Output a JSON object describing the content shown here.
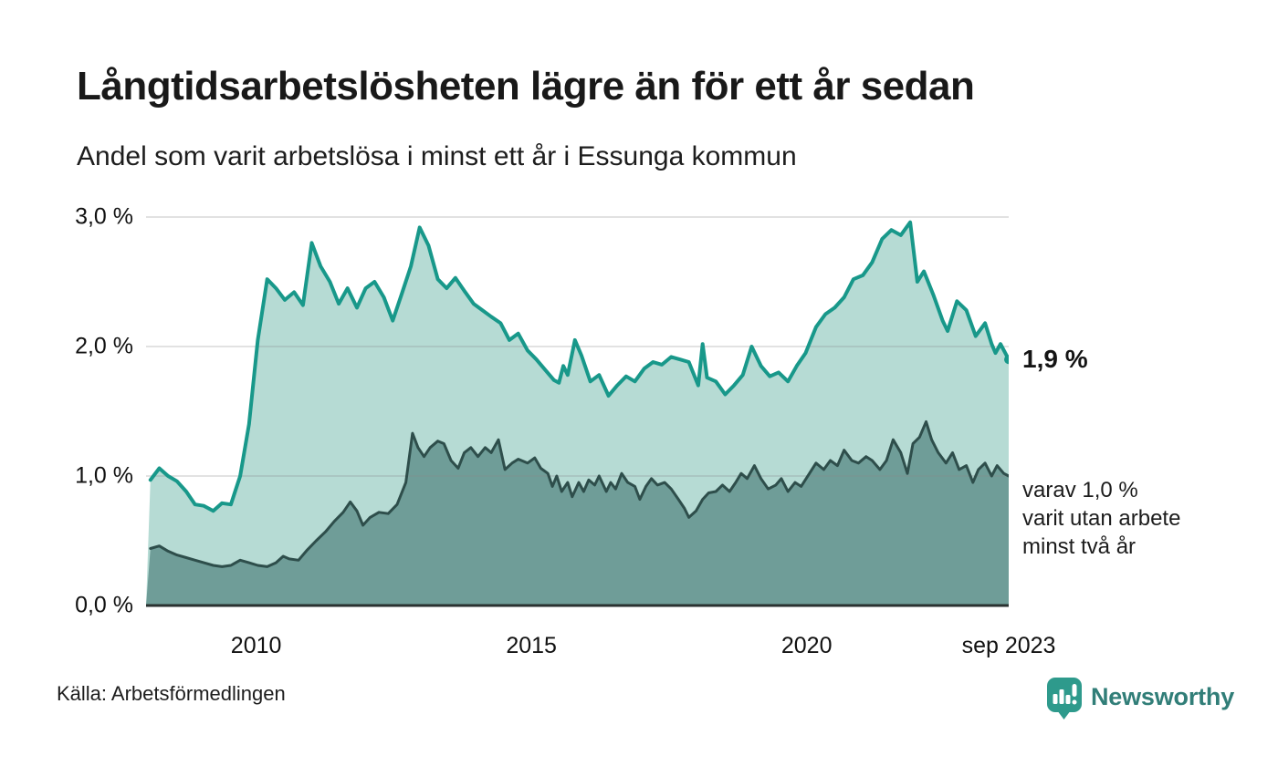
{
  "header": {
    "title": "Långtidsarbetslösheten lägre än för ett år sedan",
    "subtitle": "Andel som varit arbetslösa i minst ett år i Essunga kommun"
  },
  "chart_data": {
    "type": "area",
    "title": "Långtidsarbetslösheten lägre än för ett år sedan",
    "subtitle": "Andel som varit arbetslösa i minst ett år i Essunga kommun",
    "x_domain": [
      2008.0,
      2023.67
    ],
    "ylim": [
      0,
      3.1
    ],
    "grid": true,
    "y_ticks": [
      {
        "value": 0.0,
        "label": "0,0 %"
      },
      {
        "value": 1.0,
        "label": "1,0 %"
      },
      {
        "value": 2.0,
        "label": "2,0 %"
      },
      {
        "value": 3.0,
        "label": "3,0 %"
      }
    ],
    "x_ticks": [
      {
        "value": 2010,
        "label": "2010"
      },
      {
        "value": 2015,
        "label": "2015"
      },
      {
        "value": 2020,
        "label": "2020"
      },
      {
        "value": 2023.67,
        "label": "sep 2023"
      }
    ],
    "series": [
      {
        "name": "arbetslösa minst ett år",
        "line_color": "#18988A",
        "fill_color": "#B6DBD4",
        "line_width": 4,
        "end_dot": true,
        "points": [
          [
            2008.08,
            0.97
          ],
          [
            2008.24,
            1.06
          ],
          [
            2008.4,
            1.0
          ],
          [
            2008.56,
            0.96
          ],
          [
            2008.73,
            0.88
          ],
          [
            2008.89,
            0.78
          ],
          [
            2009.05,
            0.77
          ],
          [
            2009.22,
            0.73
          ],
          [
            2009.38,
            0.79
          ],
          [
            2009.54,
            0.78
          ],
          [
            2009.71,
            1.0
          ],
          [
            2009.87,
            1.4
          ],
          [
            2010.03,
            2.05
          ],
          [
            2010.2,
            2.52
          ],
          [
            2010.36,
            2.45
          ],
          [
            2010.52,
            2.36
          ],
          [
            2010.69,
            2.42
          ],
          [
            2010.85,
            2.32
          ],
          [
            2011.01,
            2.8
          ],
          [
            2011.17,
            2.62
          ],
          [
            2011.34,
            2.5
          ],
          [
            2011.5,
            2.33
          ],
          [
            2011.66,
            2.45
          ],
          [
            2011.83,
            2.3
          ],
          [
            2011.99,
            2.45
          ],
          [
            2012.15,
            2.5
          ],
          [
            2012.32,
            2.38
          ],
          [
            2012.48,
            2.2
          ],
          [
            2012.64,
            2.4
          ],
          [
            2012.81,
            2.62
          ],
          [
            2012.97,
            2.92
          ],
          [
            2013.13,
            2.78
          ],
          [
            2013.3,
            2.52
          ],
          [
            2013.46,
            2.45
          ],
          [
            2013.62,
            2.53
          ],
          [
            2013.78,
            2.43
          ],
          [
            2013.95,
            2.33
          ],
          [
            2014.11,
            2.28
          ],
          [
            2014.27,
            2.23
          ],
          [
            2014.44,
            2.18
          ],
          [
            2014.6,
            2.05
          ],
          [
            2014.76,
            2.1
          ],
          [
            2014.93,
            1.97
          ],
          [
            2015.09,
            1.9
          ],
          [
            2015.25,
            1.82
          ],
          [
            2015.41,
            1.74
          ],
          [
            2015.5,
            1.72
          ],
          [
            2015.58,
            1.85
          ],
          [
            2015.66,
            1.78
          ],
          [
            2015.79,
            2.05
          ],
          [
            2015.91,
            1.93
          ],
          [
            2016.07,
            1.73
          ],
          [
            2016.23,
            1.78
          ],
          [
            2016.4,
            1.62
          ],
          [
            2016.56,
            1.7
          ],
          [
            2016.72,
            1.77
          ],
          [
            2016.88,
            1.73
          ],
          [
            2017.05,
            1.83
          ],
          [
            2017.21,
            1.88
          ],
          [
            2017.37,
            1.86
          ],
          [
            2017.54,
            1.92
          ],
          [
            2017.7,
            1.9
          ],
          [
            2017.86,
            1.88
          ],
          [
            2018.03,
            1.7
          ],
          [
            2018.11,
            2.02
          ],
          [
            2018.19,
            1.76
          ],
          [
            2018.35,
            1.73
          ],
          [
            2018.52,
            1.63
          ],
          [
            2018.68,
            1.7
          ],
          [
            2018.84,
            1.78
          ],
          [
            2019.0,
            2.0
          ],
          [
            2019.17,
            1.85
          ],
          [
            2019.33,
            1.77
          ],
          [
            2019.49,
            1.8
          ],
          [
            2019.66,
            1.73
          ],
          [
            2019.82,
            1.85
          ],
          [
            2019.98,
            1.95
          ],
          [
            2020.17,
            2.15
          ],
          [
            2020.34,
            2.25
          ],
          [
            2020.51,
            2.3
          ],
          [
            2020.68,
            2.38
          ],
          [
            2020.85,
            2.52
          ],
          [
            2021.02,
            2.55
          ],
          [
            2021.19,
            2.65
          ],
          [
            2021.37,
            2.83
          ],
          [
            2021.54,
            2.9
          ],
          [
            2021.71,
            2.86
          ],
          [
            2021.88,
            2.96
          ],
          [
            2022.01,
            2.5
          ],
          [
            2022.13,
            2.58
          ],
          [
            2022.3,
            2.4
          ],
          [
            2022.47,
            2.2
          ],
          [
            2022.56,
            2.12
          ],
          [
            2022.73,
            2.35
          ],
          [
            2022.9,
            2.28
          ],
          [
            2023.07,
            2.08
          ],
          [
            2023.24,
            2.18
          ],
          [
            2023.36,
            2.02
          ],
          [
            2023.43,
            1.95
          ],
          [
            2023.52,
            2.02
          ],
          [
            2023.67,
            1.9
          ]
        ]
      },
      {
        "name": "varav utan arbete minst två år",
        "line_color": "#2E4E4B",
        "fill_color": "#6F9D98",
        "line_width": 3,
        "end_dot": false,
        "points": [
          [
            2008.08,
            0.44
          ],
          [
            2008.24,
            0.46
          ],
          [
            2008.4,
            0.42
          ],
          [
            2008.56,
            0.39
          ],
          [
            2008.73,
            0.37
          ],
          [
            2008.89,
            0.35
          ],
          [
            2009.05,
            0.33
          ],
          [
            2009.22,
            0.31
          ],
          [
            2009.38,
            0.3
          ],
          [
            2009.54,
            0.31
          ],
          [
            2009.71,
            0.35
          ],
          [
            2009.87,
            0.33
          ],
          [
            2010.03,
            0.31
          ],
          [
            2010.2,
            0.3
          ],
          [
            2010.36,
            0.33
          ],
          [
            2010.49,
            0.38
          ],
          [
            2010.6,
            0.36
          ],
          [
            2010.77,
            0.35
          ],
          [
            2010.93,
            0.43
          ],
          [
            2011.09,
            0.5
          ],
          [
            2011.26,
            0.57
          ],
          [
            2011.42,
            0.65
          ],
          [
            2011.58,
            0.72
          ],
          [
            2011.71,
            0.8
          ],
          [
            2011.83,
            0.73
          ],
          [
            2011.94,
            0.62
          ],
          [
            2012.07,
            0.68
          ],
          [
            2012.23,
            0.72
          ],
          [
            2012.4,
            0.71
          ],
          [
            2012.56,
            0.78
          ],
          [
            2012.72,
            0.95
          ],
          [
            2012.84,
            1.33
          ],
          [
            2012.94,
            1.22
          ],
          [
            2013.05,
            1.15
          ],
          [
            2013.16,
            1.22
          ],
          [
            2013.3,
            1.27
          ],
          [
            2013.41,
            1.25
          ],
          [
            2013.54,
            1.12
          ],
          [
            2013.67,
            1.06
          ],
          [
            2013.78,
            1.18
          ],
          [
            2013.9,
            1.22
          ],
          [
            2014.03,
            1.15
          ],
          [
            2014.16,
            1.22
          ],
          [
            2014.27,
            1.18
          ],
          [
            2014.4,
            1.28
          ],
          [
            2014.52,
            1.05
          ],
          [
            2014.65,
            1.1
          ],
          [
            2014.76,
            1.13
          ],
          [
            2014.93,
            1.1
          ],
          [
            2015.06,
            1.14
          ],
          [
            2015.17,
            1.06
          ],
          [
            2015.3,
            1.02
          ],
          [
            2015.38,
            0.92
          ],
          [
            2015.46,
            1.0
          ],
          [
            2015.55,
            0.88
          ],
          [
            2015.66,
            0.95
          ],
          [
            2015.74,
            0.84
          ],
          [
            2015.86,
            0.95
          ],
          [
            2015.95,
            0.88
          ],
          [
            2016.04,
            0.97
          ],
          [
            2016.15,
            0.93
          ],
          [
            2016.23,
            1.0
          ],
          [
            2016.36,
            0.88
          ],
          [
            2016.44,
            0.95
          ],
          [
            2016.53,
            0.9
          ],
          [
            2016.64,
            1.02
          ],
          [
            2016.75,
            0.95
          ],
          [
            2016.88,
            0.92
          ],
          [
            2016.97,
            0.82
          ],
          [
            2017.08,
            0.92
          ],
          [
            2017.18,
            0.98
          ],
          [
            2017.29,
            0.93
          ],
          [
            2017.42,
            0.95
          ],
          [
            2017.54,
            0.9
          ],
          [
            2017.67,
            0.82
          ],
          [
            2017.78,
            0.75
          ],
          [
            2017.86,
            0.68
          ],
          [
            2017.99,
            0.73
          ],
          [
            2018.11,
            0.82
          ],
          [
            2018.22,
            0.87
          ],
          [
            2018.35,
            0.88
          ],
          [
            2018.47,
            0.93
          ],
          [
            2018.6,
            0.88
          ],
          [
            2018.71,
            0.95
          ],
          [
            2018.81,
            1.02
          ],
          [
            2018.92,
            0.98
          ],
          [
            2019.05,
            1.08
          ],
          [
            2019.17,
            0.98
          ],
          [
            2019.3,
            0.9
          ],
          [
            2019.44,
            0.93
          ],
          [
            2019.54,
            0.98
          ],
          [
            2019.66,
            0.88
          ],
          [
            2019.79,
            0.95
          ],
          [
            2019.9,
            0.92
          ],
          [
            2020.05,
            1.02
          ],
          [
            2020.17,
            1.1
          ],
          [
            2020.31,
            1.05
          ],
          [
            2020.43,
            1.12
          ],
          [
            2020.56,
            1.08
          ],
          [
            2020.68,
            1.2
          ],
          [
            2020.82,
            1.12
          ],
          [
            2020.94,
            1.1
          ],
          [
            2021.08,
            1.15
          ],
          [
            2021.19,
            1.12
          ],
          [
            2021.33,
            1.05
          ],
          [
            2021.45,
            1.12
          ],
          [
            2021.57,
            1.28
          ],
          [
            2021.71,
            1.18
          ],
          [
            2021.83,
            1.02
          ],
          [
            2021.93,
            1.25
          ],
          [
            2022.05,
            1.3
          ],
          [
            2022.17,
            1.42
          ],
          [
            2022.27,
            1.28
          ],
          [
            2022.39,
            1.18
          ],
          [
            2022.53,
            1.1
          ],
          [
            2022.65,
            1.18
          ],
          [
            2022.77,
            1.05
          ],
          [
            2022.9,
            1.08
          ],
          [
            2023.02,
            0.95
          ],
          [
            2023.12,
            1.05
          ],
          [
            2023.24,
            1.1
          ],
          [
            2023.36,
            1.0
          ],
          [
            2023.46,
            1.08
          ],
          [
            2023.58,
            1.02
          ],
          [
            2023.67,
            1.0
          ]
        ]
      }
    ],
    "annotations": {
      "end_label": "1,9 %",
      "sub_label_lines": [
        "varav 1,0 %",
        "varit utan arbete",
        "minst två år"
      ]
    }
  },
  "footer": {
    "source": "Källa: Arbetsförmedlingen",
    "brand": "Newsworthy"
  },
  "colors": {
    "accent_teal": "#18988A",
    "fill_light": "#B6DBD4",
    "fill_dark": "#6F9D98",
    "line_dark": "#2E4E4B",
    "grid": "#888888",
    "baseline": "#2A3230",
    "brand_teal": "#317E78",
    "icon_teal": "#2E9A8C",
    "text": "#191919"
  }
}
